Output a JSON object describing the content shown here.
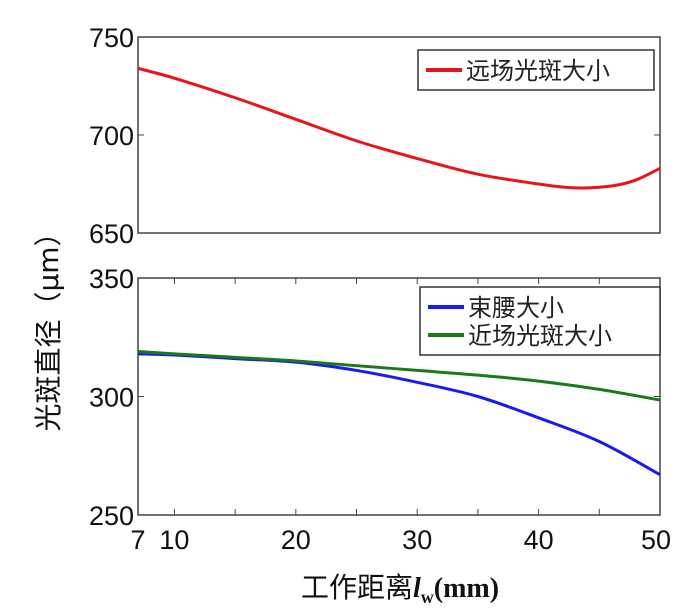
{
  "chart_data": [
    {
      "type": "line",
      "xlim": [
        7,
        50
      ],
      "ylim": [
        650,
        750
      ],
      "yticks": [
        "650",
        "700",
        "750"
      ],
      "legend": "top-right",
      "grid": false,
      "series": [
        {
          "name": "远场光斑大小",
          "color": "#e8141c",
          "x": [
            7,
            10,
            15,
            20,
            25,
            30,
            35,
            40,
            43,
            46,
            48,
            50
          ],
          "y": [
            734,
            729,
            719,
            708,
            697,
            688,
            680,
            675,
            673,
            674,
            677,
            683
          ]
        }
      ]
    },
    {
      "type": "line",
      "xlim": [
        7,
        50
      ],
      "ylim": [
        250,
        350
      ],
      "xticks": [
        "7",
        "10",
        "20",
        "30",
        "40",
        "50"
      ],
      "yticks": [
        "250",
        "300",
        "350"
      ],
      "legend": "top-right",
      "grid": false,
      "series": [
        {
          "name": "束腰大小",
          "color": "#1a1aef",
          "x": [
            7,
            10,
            15,
            20,
            25,
            30,
            35,
            40,
            45,
            50
          ],
          "y": [
            318,
            317.5,
            316,
            314.5,
            311,
            306,
            300,
            291,
            281,
            267
          ]
        },
        {
          "name": "近场光斑大小",
          "color": "#1a7a1a",
          "x": [
            7,
            10,
            15,
            20,
            25,
            30,
            35,
            40,
            45,
            50
          ],
          "y": [
            319,
            318,
            316.5,
            315,
            313,
            311,
            309,
            306.5,
            303,
            298.5
          ]
        }
      ]
    }
  ],
  "ylabel": "光斑直径（μm）",
  "xlabel": "工作距离",
  "xlabel_var": "l",
  "xlabel_sub": "w",
  "xlabel_unit": "(mm)"
}
